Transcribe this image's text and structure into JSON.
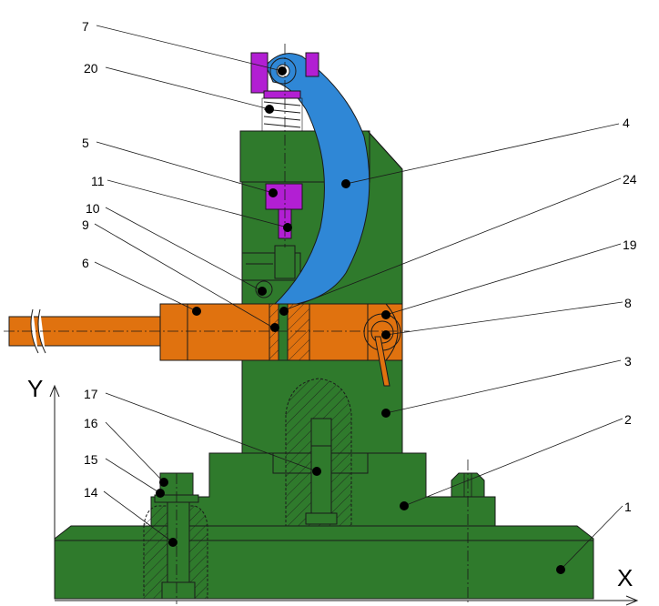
{
  "axes": {
    "x_label": "X",
    "y_label": "Y"
  },
  "callouts": [
    {
      "label": "7"
    },
    {
      "label": "20"
    },
    {
      "label": "5"
    },
    {
      "label": "11"
    },
    {
      "label": "10"
    },
    {
      "label": "9"
    },
    {
      "label": "6"
    },
    {
      "label": "17"
    },
    {
      "label": "16"
    },
    {
      "label": "15"
    },
    {
      "label": "14"
    },
    {
      "label": "4"
    },
    {
      "label": "24"
    },
    {
      "label": "19"
    },
    {
      "label": "8"
    },
    {
      "label": "3"
    },
    {
      "label": "2"
    },
    {
      "label": "1"
    }
  ],
  "colors": {
    "body_green": "#2f7a2c",
    "lever_blue": "#2f87d6",
    "handle_orange": "#e0720f",
    "clamp_magenta": "#b21fd3",
    "outline": "#1a1a1a",
    "marker": "#000000"
  }
}
